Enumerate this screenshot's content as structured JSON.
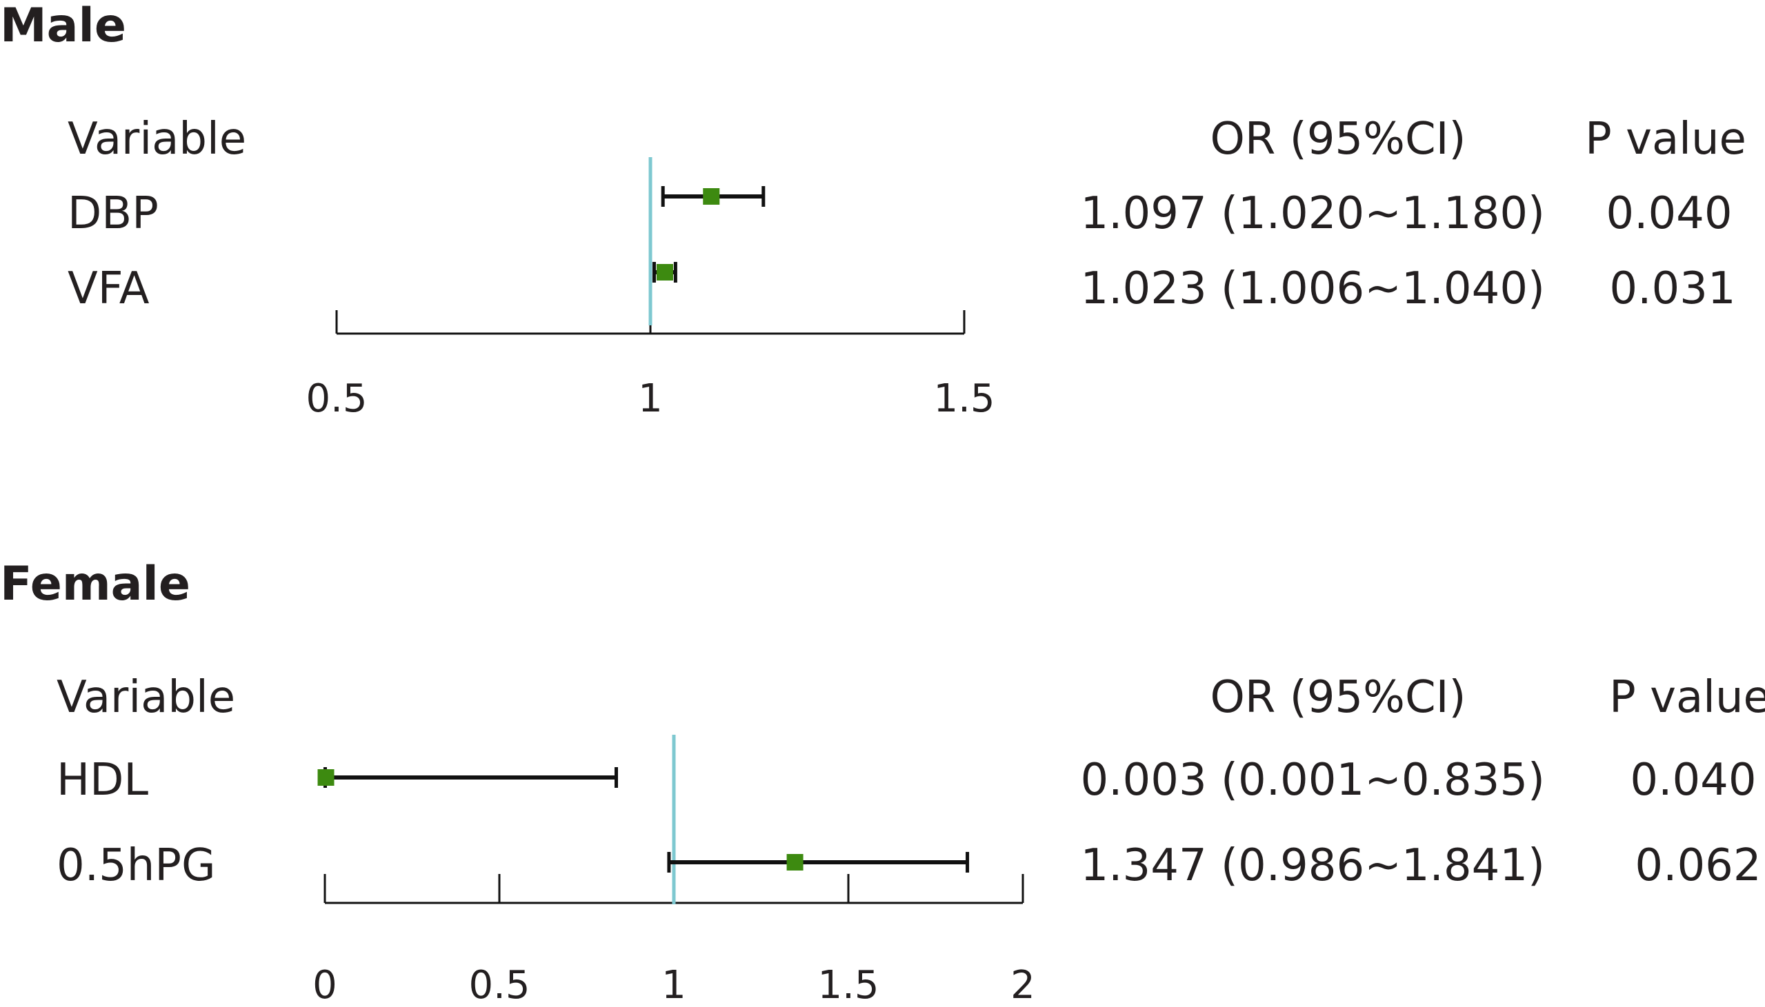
{
  "chart_data": [
    {
      "type": "forest",
      "title": "Male",
      "columns": {
        "variable": "Variable",
        "or": "OR (95%CI)",
        "p": "P value"
      },
      "reference_line": 1,
      "xlim": [
        0.5,
        1.5
      ],
      "ticks": [
        0.5,
        1,
        1.5
      ],
      "tick_labels": [
        "0.5",
        "1",
        "1.5"
      ],
      "rows": [
        {
          "variable": "DBP",
          "or": 1.097,
          "lo": 1.02,
          "hi": 1.18,
          "or_text": "1.097 (1.020~1.180)",
          "p": "0.040"
        },
        {
          "variable": "VFA",
          "or": 1.023,
          "lo": 1.006,
          "hi": 1.04,
          "or_text": "1.023 (1.006~1.040)",
          "p": "0.031"
        }
      ]
    },
    {
      "type": "forest",
      "title": "Female",
      "columns": {
        "variable": "Variable",
        "or": "OR (95%CI)",
        "p": "P value"
      },
      "reference_line": 1,
      "xlim": [
        0,
        2
      ],
      "ticks": [
        0,
        0.5,
        1,
        1.5,
        2
      ],
      "tick_labels": [
        "0",
        "0.5",
        "1",
        "1.5",
        "2"
      ],
      "rows": [
        {
          "variable": "HDL",
          "or": 0.003,
          "lo": 0.001,
          "hi": 0.835,
          "or_text": "0.003 (0.001~0.835)",
          "p": "0.040"
        },
        {
          "variable": "0.5hPG",
          "or": 1.347,
          "lo": 0.986,
          "hi": 1.841,
          "or_text": "1.347 (0.986~1.841)",
          "p": "0.062"
        }
      ]
    }
  ],
  "colors": {
    "marker": "#3d8a10",
    "reference_line": "#7ec8d0",
    "whisker": "#111111",
    "text": "#231f20"
  }
}
